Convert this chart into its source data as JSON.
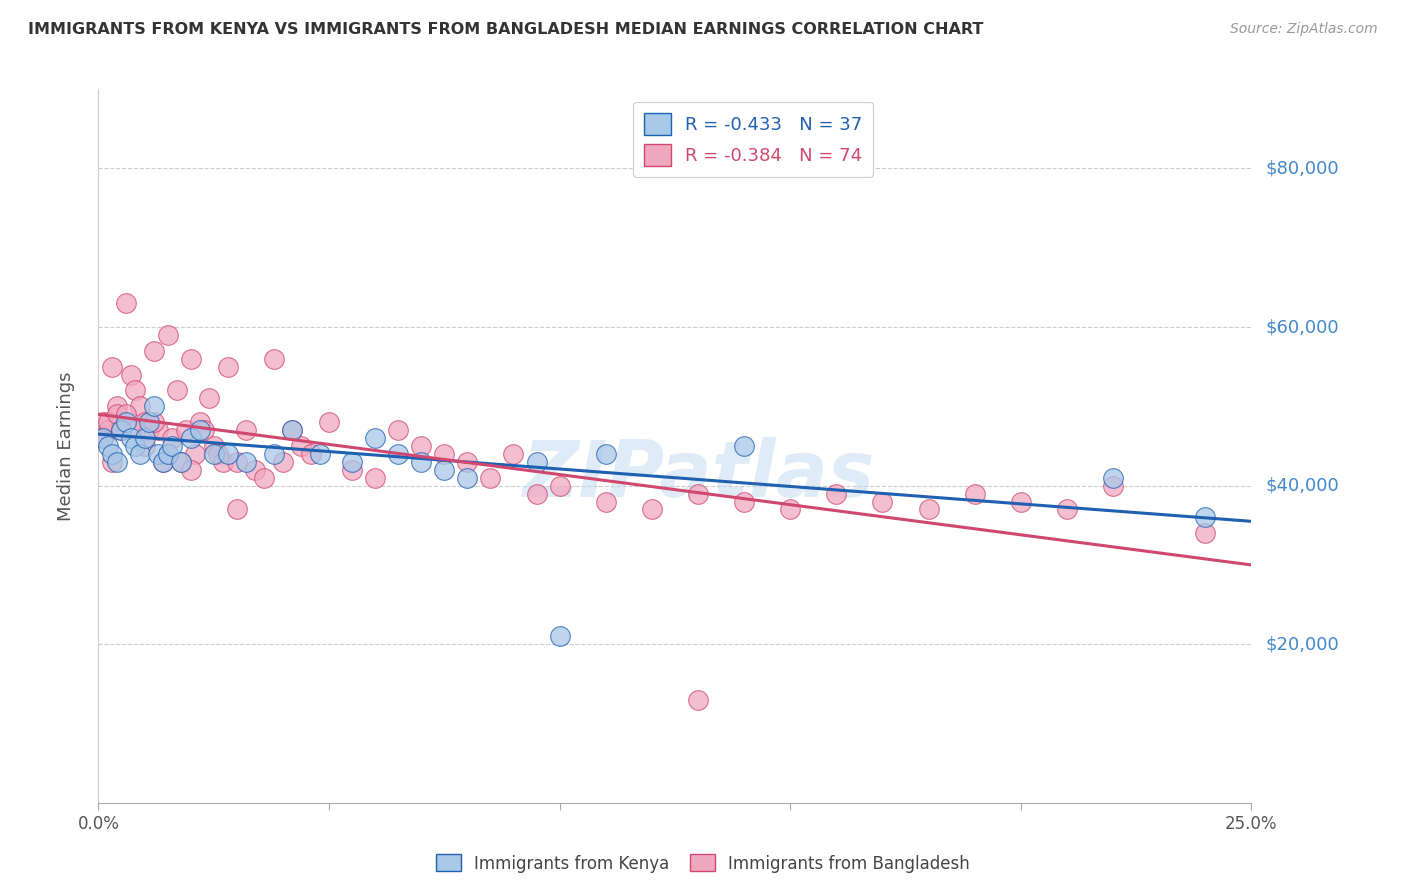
{
  "title": "IMMIGRANTS FROM KENYA VS IMMIGRANTS FROM BANGLADESH MEDIAN EARNINGS CORRELATION CHART",
  "source": "Source: ZipAtlas.com",
  "ylabel": "Median Earnings",
  "yticks": [
    20000,
    40000,
    60000,
    80000
  ],
  "ytick_labels": [
    "$20,000",
    "$40,000",
    "$60,000",
    "$80,000"
  ],
  "xlim": [
    0.0,
    0.25
  ],
  "ylim": [
    0,
    90000
  ],
  "legend_kenya": "R = -0.433   N = 37",
  "legend_bangladesh": "R = -0.384   N = 74",
  "watermark": "ZIPatlas",
  "kenya_color": "#a8c8e8",
  "kenya_line_color": "#2060b0",
  "bangladesh_color": "#f0a8c0",
  "bangladesh_line_color": "#d04870",
  "kenya_x": [
    0.001,
    0.002,
    0.003,
    0.004,
    0.005,
    0.006,
    0.007,
    0.008,
    0.009,
    0.01,
    0.011,
    0.012,
    0.013,
    0.014,
    0.015,
    0.016,
    0.018,
    0.02,
    0.022,
    0.025,
    0.028,
    0.032,
    0.038,
    0.042,
    0.048,
    0.055,
    0.06,
    0.065,
    0.07,
    0.075,
    0.08,
    0.1,
    0.11,
    0.14,
    0.22,
    0.24,
    0.095
  ],
  "kenya_y": [
    46000,
    45000,
    44000,
    43000,
    47000,
    48000,
    46000,
    45000,
    44000,
    46000,
    48000,
    50000,
    44000,
    43000,
    44000,
    45000,
    43000,
    46000,
    47000,
    44000,
    44000,
    43000,
    44000,
    47000,
    44000,
    43000,
    46000,
    44000,
    43000,
    42000,
    41000,
    21000,
    44000,
    45000,
    41000,
    36000,
    43000
  ],
  "bangladesh_x": [
    0.001,
    0.002,
    0.003,
    0.004,
    0.005,
    0.006,
    0.007,
    0.008,
    0.009,
    0.01,
    0.011,
    0.012,
    0.013,
    0.014,
    0.015,
    0.016,
    0.017,
    0.018,
    0.019,
    0.02,
    0.021,
    0.022,
    0.023,
    0.024,
    0.025,
    0.026,
    0.027,
    0.028,
    0.03,
    0.032,
    0.034,
    0.036,
    0.038,
    0.04,
    0.042,
    0.044,
    0.046,
    0.05,
    0.055,
    0.06,
    0.065,
    0.07,
    0.075,
    0.08,
    0.085,
    0.09,
    0.095,
    0.1,
    0.11,
    0.12,
    0.13,
    0.14,
    0.15,
    0.16,
    0.17,
    0.18,
    0.19,
    0.2,
    0.21,
    0.22,
    0.001,
    0.002,
    0.003,
    0.004,
    0.005,
    0.006,
    0.008,
    0.01,
    0.012,
    0.015,
    0.02,
    0.03,
    0.24,
    0.13
  ],
  "bangladesh_y": [
    48000,
    47000,
    55000,
    50000,
    48000,
    63000,
    54000,
    52000,
    50000,
    48000,
    47000,
    57000,
    47000,
    43000,
    59000,
    46000,
    52000,
    43000,
    47000,
    56000,
    44000,
    48000,
    47000,
    51000,
    45000,
    44000,
    43000,
    55000,
    43000,
    47000,
    42000,
    41000,
    56000,
    43000,
    47000,
    45000,
    44000,
    48000,
    42000,
    41000,
    47000,
    45000,
    44000,
    43000,
    41000,
    44000,
    39000,
    40000,
    38000,
    37000,
    39000,
    38000,
    37000,
    39000,
    38000,
    37000,
    39000,
    38000,
    37000,
    40000,
    46000,
    48000,
    43000,
    49000,
    47000,
    49000,
    47000,
    45000,
    48000,
    44000,
    42000,
    37000,
    34000,
    13000
  ],
  "kenya_trend_x": [
    0.0,
    0.25
  ],
  "kenya_trend_y": [
    46500,
    35500
  ],
  "bangladesh_trend_x": [
    0.0,
    0.25
  ],
  "bangladesh_trend_y": [
    49000,
    30000
  ],
  "background_color": "#ffffff",
  "grid_color": "#cccccc",
  "title_color": "#333333",
  "axis_label_color": "#555555",
  "ytick_color": "#4488cc",
  "xtick_color": "#555555"
}
